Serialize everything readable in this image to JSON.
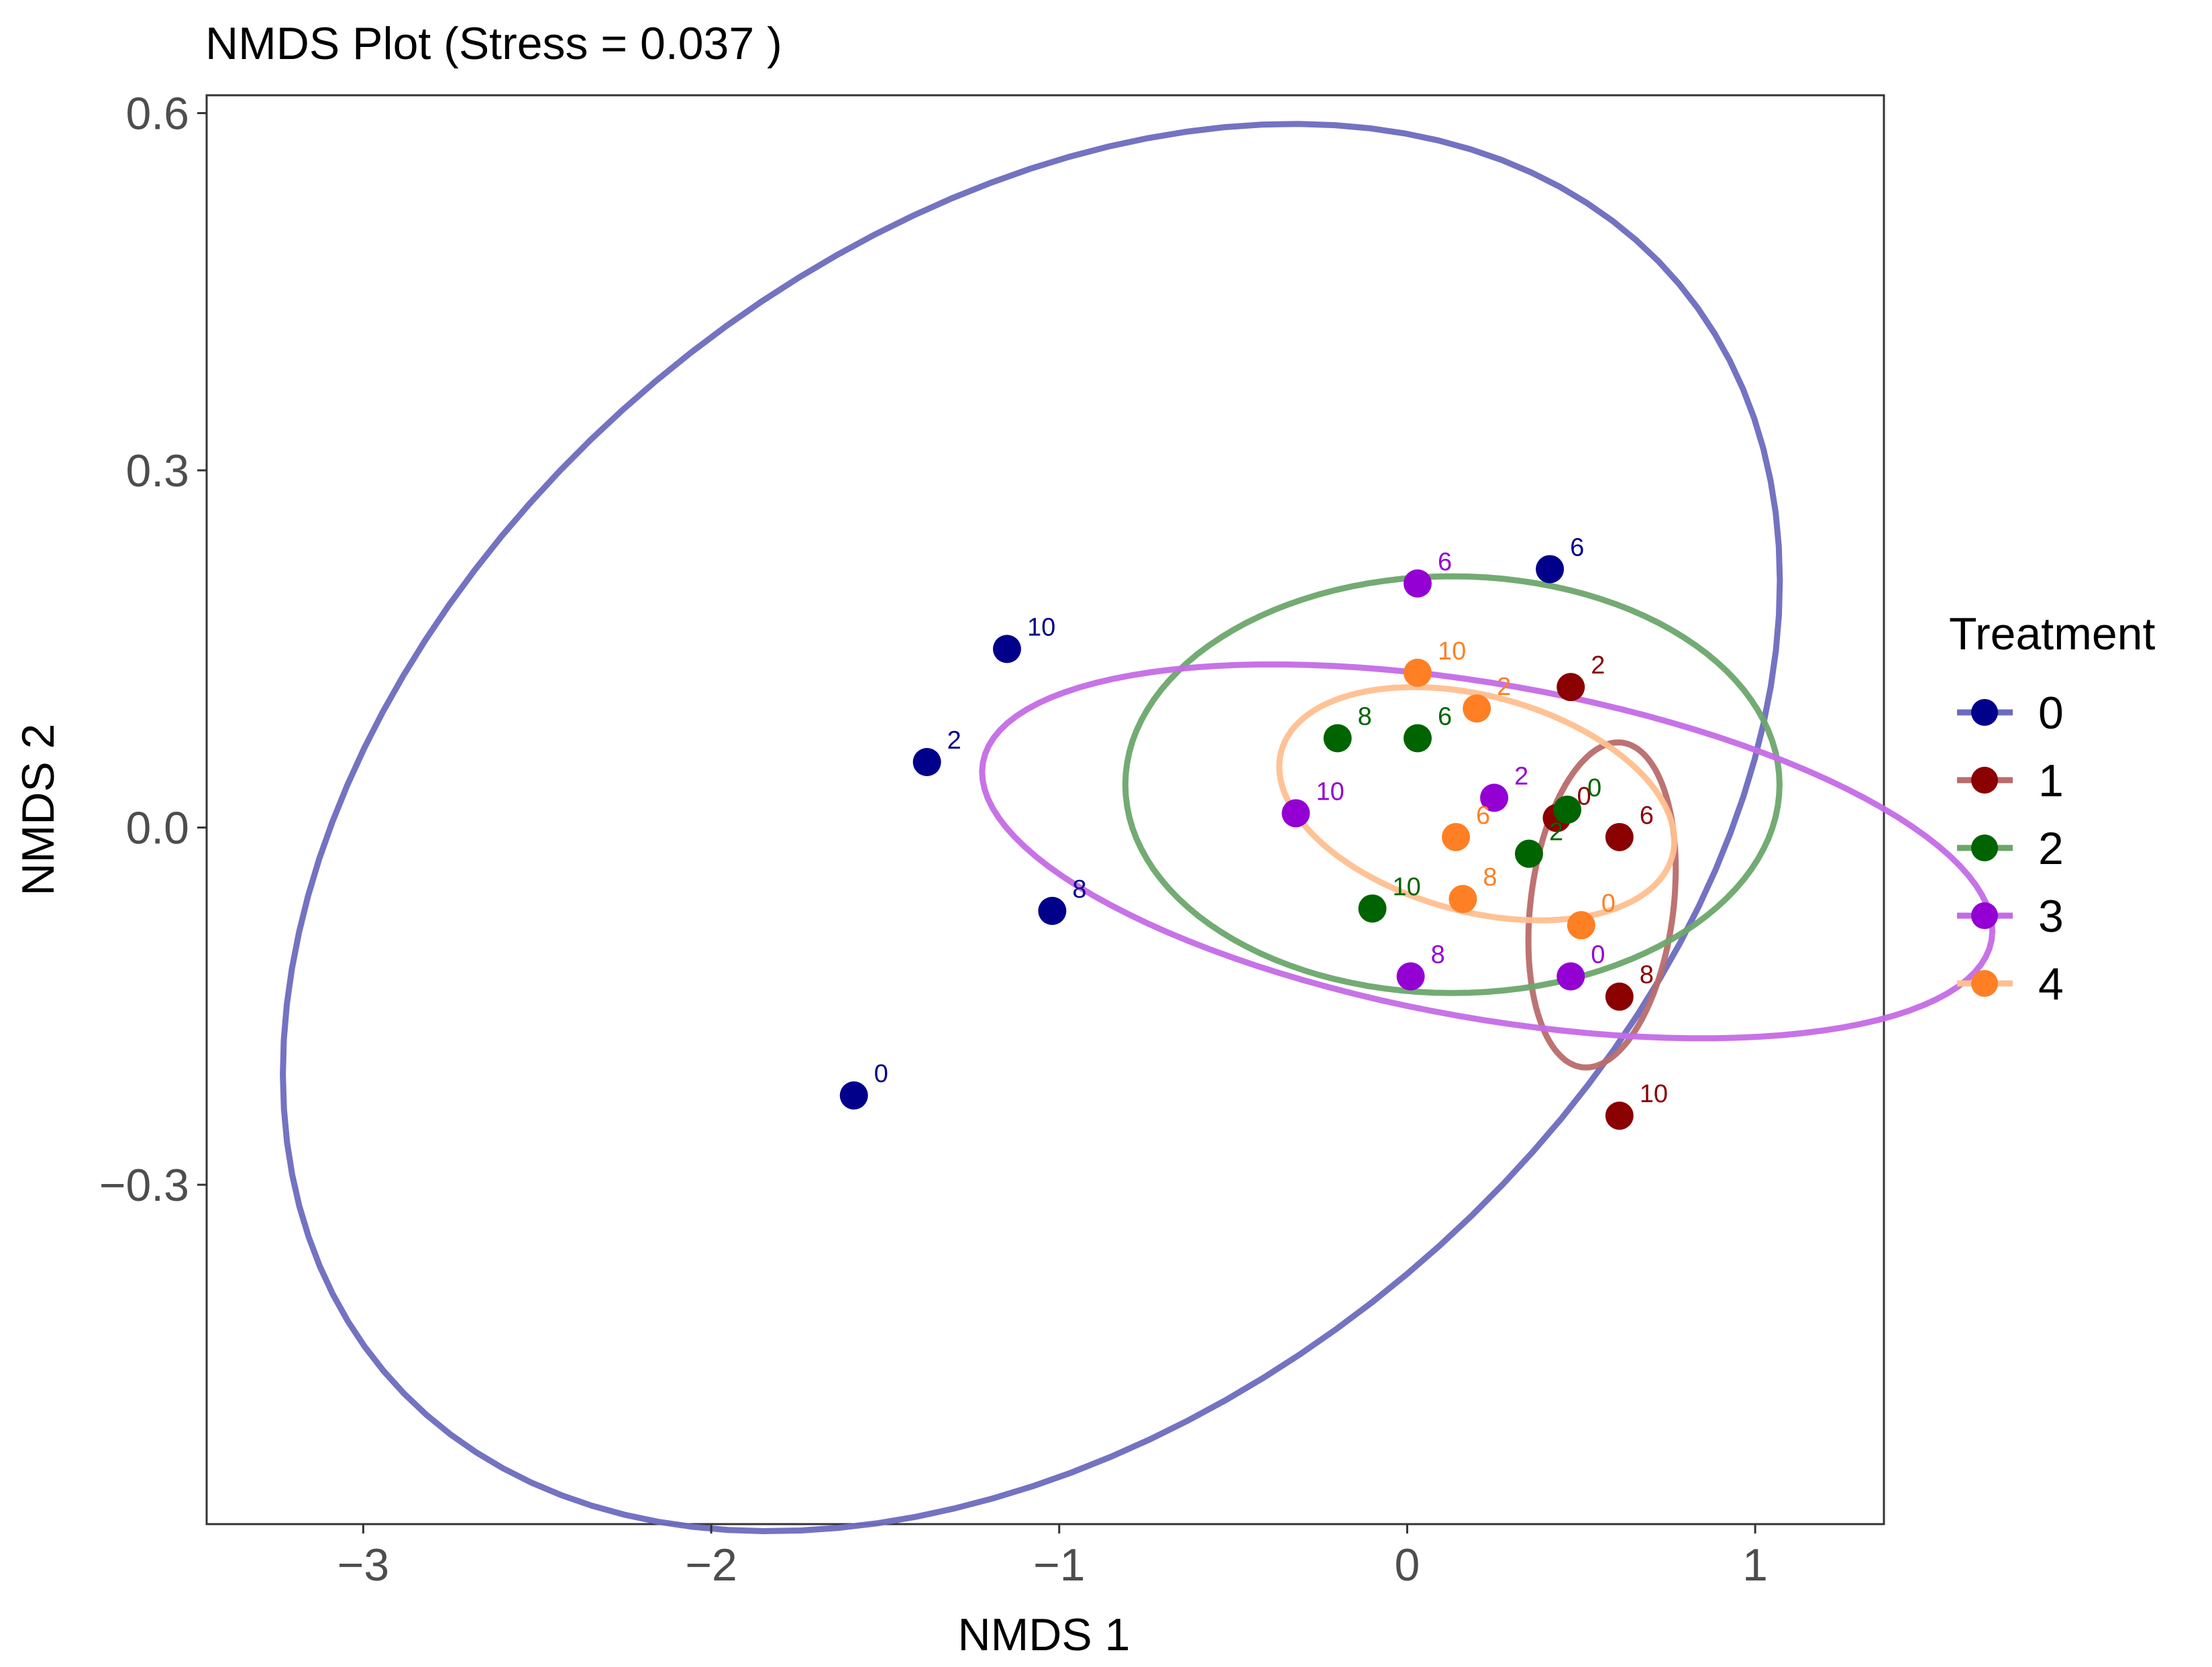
{
  "chart_data": {
    "type": "scatter",
    "title": "NMDS Plot (Stress = 0.037 )",
    "xlabel": "NMDS 1",
    "ylabel": "NMDS 2",
    "xlim": [
      -3.45,
      1.37
    ],
    "ylim": [
      -0.585,
      0.615
    ],
    "x_ticks": [
      -3,
      -2,
      -1,
      0,
      1
    ],
    "x_tick_labels": [
      "−3",
      "−2",
      "−1",
      "0",
      "1"
    ],
    "y_ticks": [
      -0.3,
      0.0,
      0.3,
      0.6
    ],
    "y_tick_labels": [
      "−0.3",
      "0.0",
      "0.3",
      "0.6"
    ],
    "grid": false,
    "legend": {
      "title": "Treatment",
      "position": "right",
      "entries": [
        "0",
        "1",
        "2",
        "3",
        "4"
      ]
    },
    "series": [
      {
        "name": "0",
        "color": "#00008B",
        "ellipse_color": "#6B6BBF",
        "points": [
          {
            "x": -1.59,
            "y": -0.225,
            "label": "0"
          },
          {
            "x": -1.38,
            "y": 0.055,
            "label": "2"
          },
          {
            "x": 0.41,
            "y": 0.217,
            "label": "6"
          },
          {
            "x": -1.02,
            "y": -0.07,
            "label": "8"
          },
          {
            "x": -1.15,
            "y": 0.15,
            "label": "10"
          }
        ],
        "ellipse": {
          "cx": -1.08,
          "cy": 0.0,
          "ax": 2.43,
          "ay": 0.49,
          "angle_deg": 40
        }
      },
      {
        "name": "1",
        "color": "#8B0000",
        "ellipse_color": "#B96B6B",
        "points": [
          {
            "x": 0.43,
            "y": 0.008,
            "label": "0"
          },
          {
            "x": 0.47,
            "y": 0.118,
            "label": "2"
          },
          {
            "x": 0.61,
            "y": -0.008,
            "label": "6"
          },
          {
            "x": 0.61,
            "y": -0.142,
            "label": "8"
          },
          {
            "x": 0.61,
            "y": -0.242,
            "label": "10"
          }
        ],
        "ellipse": {
          "cx": 0.56,
          "cy": -0.065,
          "ax": 0.47,
          "ay": 0.06,
          "angle_deg": 83
        }
      },
      {
        "name": "2",
        "color": "#006400",
        "ellipse_color": "#6BA66B",
        "points": [
          {
            "x": 0.46,
            "y": 0.015,
            "label": "0"
          },
          {
            "x": 0.35,
            "y": -0.022,
            "label": "2"
          },
          {
            "x": 0.03,
            "y": 0.075,
            "label": "6"
          },
          {
            "x": -0.2,
            "y": 0.075,
            "label": "8"
          },
          {
            "x": -0.1,
            "y": -0.068,
            "label": "10"
          }
        ],
        "ellipse": {
          "cx": 0.13,
          "cy": 0.036,
          "ax": 0.94,
          "ay": 0.175,
          "angle_deg": 0
        }
      },
      {
        "name": "3",
        "color": "#9400D3",
        "ellipse_color": "#C46BE6",
        "points": [
          {
            "x": 0.47,
            "y": -0.125,
            "label": "0"
          },
          {
            "x": 0.25,
            "y": 0.025,
            "label": "2"
          },
          {
            "x": 0.03,
            "y": 0.205,
            "label": "6"
          },
          {
            "x": 0.01,
            "y": -0.125,
            "label": "8"
          },
          {
            "x": -0.32,
            "y": 0.012,
            "label": "10"
          }
        ],
        "ellipse": {
          "cx": 0.23,
          "cy": -0.02,
          "ax": 0.48,
          "ay": 0.43,
          "angle_deg": 80
        }
      },
      {
        "name": "4",
        "color": "#FF7F24",
        "ellipse_color": "#FFBF8F",
        "points": [
          {
            "x": 0.5,
            "y": -0.082,
            "label": "0"
          },
          {
            "x": 0.2,
            "y": 0.1,
            "label": "2"
          },
          {
            "x": 0.14,
            "y": -0.008,
            "label": "6"
          },
          {
            "x": 0.16,
            "y": -0.06,
            "label": "8"
          },
          {
            "x": 0.03,
            "y": 0.13,
            "label": "10"
          }
        ],
        "ellipse": {
          "cx": 0.2,
          "cy": 0.02,
          "ax": 0.31,
          "ay": 0.17,
          "angle_deg": 75
        }
      }
    ]
  }
}
